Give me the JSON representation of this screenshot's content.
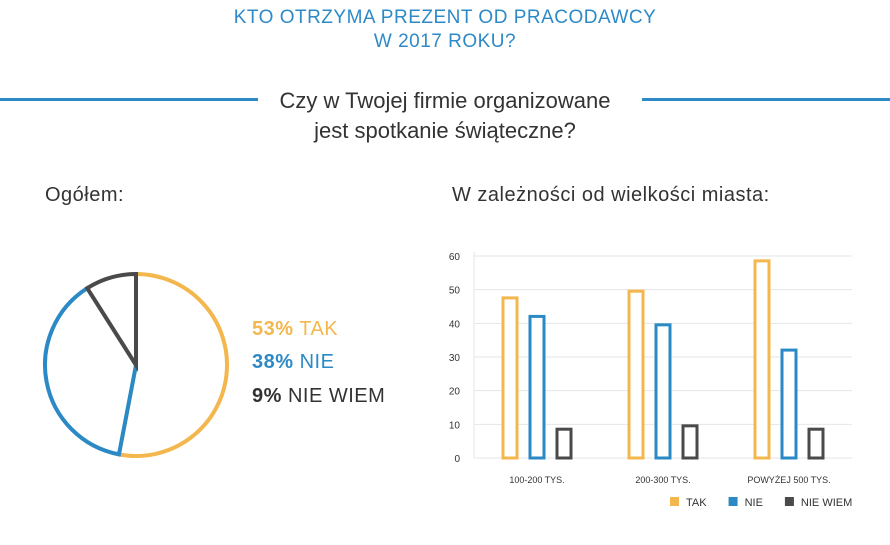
{
  "header": {
    "title_line1": "KTO OTRZYMA PREZENT OD PRACODAWCY",
    "title_line2": "W 2017 ROKU?",
    "question_line1": "Czy w Twojej firmie organizowane",
    "question_line2": "jest spotkanie świąteczne?"
  },
  "colors": {
    "accent": "#2d8ac7",
    "tak": "#f3b74e",
    "nie": "#2b8ac6",
    "nie_wiem": "#4a4a4a"
  },
  "chart_data": [
    {
      "type": "pie",
      "title": "Ogółem:",
      "slices": [
        {
          "label": "TAK",
          "pct_text": "53%",
          "value": 53,
          "color": "#f3b74e"
        },
        {
          "label": "NIE",
          "pct_text": "38%",
          "value": 38,
          "color": "#2b8ac6"
        },
        {
          "label": "NIE WIEM",
          "pct_text": "9%",
          "value": 9,
          "color": "#4a4a4a"
        }
      ]
    },
    {
      "type": "bar",
      "title": "W zależności od wielkości miasta:",
      "categories": [
        "100-200 TYS.",
        "200-300 TYS.",
        "POWYŻEJ 500 TYS."
      ],
      "series": [
        {
          "name": "TAK",
          "color": "#f3b74e",
          "values": [
            48,
            50,
            59
          ]
        },
        {
          "name": "NIE",
          "color": "#2b8ac6",
          "values": [
            42.5,
            40,
            32.5
          ]
        },
        {
          "name": "NIE WIEM",
          "color": "#4a4a4a",
          "values": [
            9,
            10,
            9
          ]
        }
      ],
      "yticks": [
        0,
        10,
        20,
        30,
        40,
        50,
        60
      ],
      "ylim": [
        0,
        60
      ],
      "grid": true,
      "legend": "bottom-right"
    }
  ]
}
